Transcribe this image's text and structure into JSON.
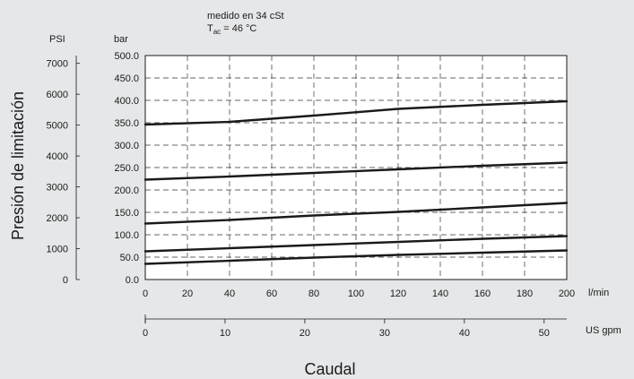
{
  "chart_data": {
    "type": "line",
    "annotation": {
      "line1": "medido en 34 cSt",
      "line2_main": "T",
      "line2_sub": "ac",
      "line2_rest": " = 46 °C"
    },
    "ylabel": "Presión de limitación",
    "xlabel": "Caudal",
    "y_units_left": "PSI",
    "y_units_right": "bar",
    "x_units_primary": "l/min",
    "x_units_secondary": "US gpm",
    "ylim": [
      0,
      500
    ],
    "xlim": [
      0,
      200
    ],
    "y_ticks_bar": [
      "0.0",
      "50.0",
      "100.0",
      "150.0",
      "200.0",
      "250.0",
      "300.0",
      "350.0",
      "400.0",
      "450.0",
      "500.0"
    ],
    "y_ticks_psi": [
      "0",
      "1000",
      "2000",
      "3000",
      "4000",
      "5000",
      "6000",
      "7000"
    ],
    "x_ticks_lmin": [
      "0",
      "20",
      "40",
      "60",
      "80",
      "100",
      "120",
      "140",
      "160",
      "180",
      "200"
    ],
    "x_ticks_gpm": [
      "0",
      "10",
      "20",
      "30",
      "40",
      "50"
    ],
    "grid": true,
    "series": [
      {
        "x": [
          0,
          40,
          80,
          120,
          160,
          200
        ],
        "y": [
          35,
          42,
          49,
          55,
          60,
          65
        ]
      },
      {
        "x": [
          0,
          40,
          80,
          120,
          160,
          200
        ],
        "y": [
          63,
          70,
          77,
          84,
          91,
          97
        ]
      },
      {
        "x": [
          0,
          40,
          80,
          120,
          160,
          200
        ],
        "y": [
          125,
          133,
          143,
          151,
          161,
          171
        ]
      },
      {
        "x": [
          0,
          40,
          80,
          120,
          160,
          200
        ],
        "y": [
          223,
          230,
          238,
          246,
          254,
          261
        ]
      },
      {
        "x": [
          0,
          40,
          80,
          120,
          160,
          200
        ],
        "y": [
          346,
          352,
          366,
          381,
          390,
          398
        ]
      }
    ]
  }
}
